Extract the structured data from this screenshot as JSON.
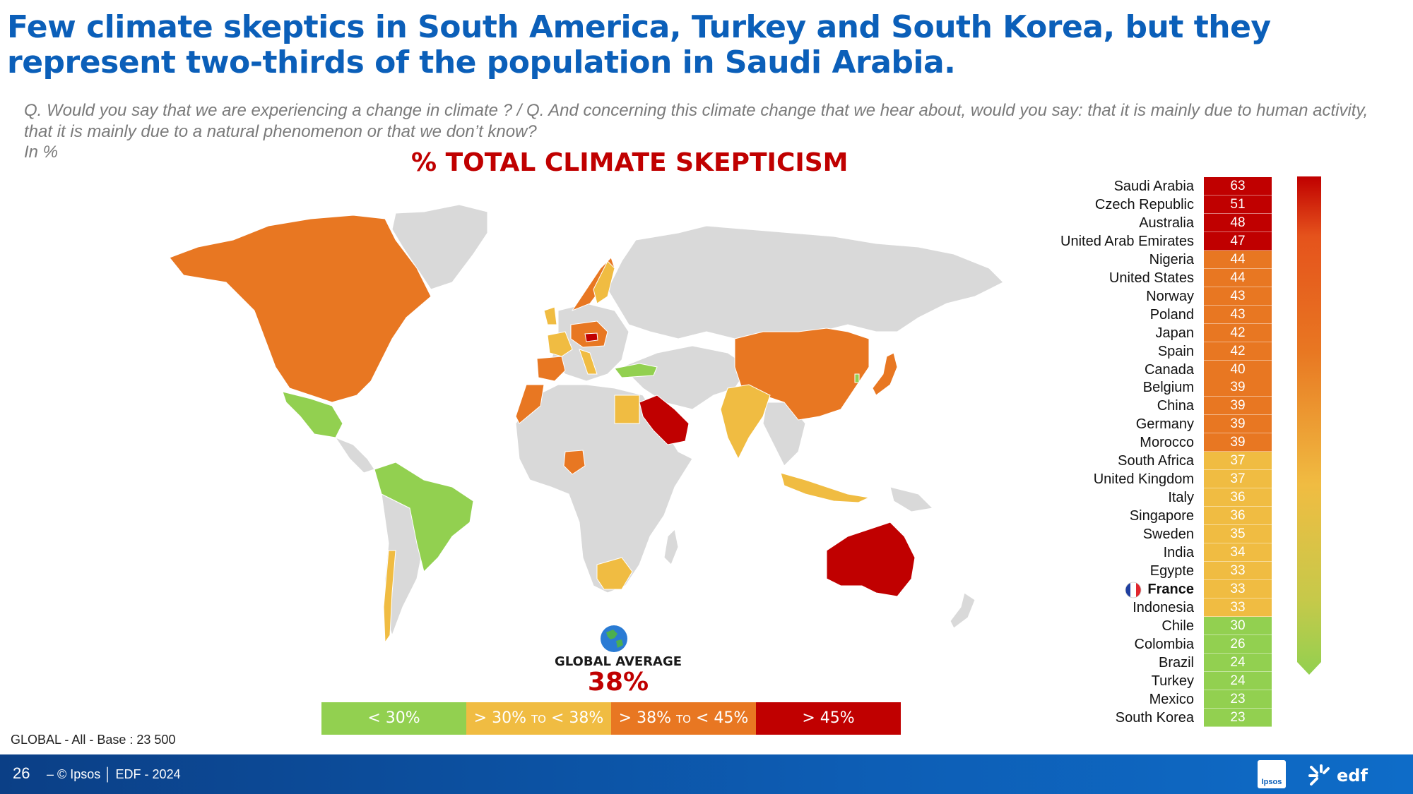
{
  "header": {
    "title": "Few climate skeptics in South America, Turkey and South Korea, but they represent two-thirds of the population in Saudi Arabia.",
    "question": "Q. Would you say that we are experiencing a change in climate ? / Q. And concerning this climate change that we hear about, would you say: that it is mainly due to human activity, that it is mainly due to a natural phenomenon or that we don’t know?",
    "unit": "In %"
  },
  "map": {
    "title": "% TOTAL CLIMATE SKEPTICISM",
    "global_average_label": "GLOBAL AVERAGE",
    "global_average_value": "38%"
  },
  "legend": [
    {
      "label": "< 30%",
      "color": "#92d050"
    },
    {
      "label": "> 30%",
      "small": "TO",
      "label2": "< 38%",
      "color": "#f0bc42"
    },
    {
      "label": "> 38%",
      "small": "TO",
      "label2": "< 45%",
      "color": "#e87722"
    },
    {
      "label": "> 45%",
      "color": "#c00000"
    }
  ],
  "colors": {
    "green": "#92d050",
    "yellow": "#f0bc42",
    "orange": "#e87722",
    "red": "#c00000",
    "land": "#d9d9d9"
  },
  "base_note": "GLOBAL - All - Base : 23 500",
  "footer": {
    "page_number": "26",
    "text": "– © Ipsos │ EDF - 2024",
    "ipsos_logo": "Ipsos",
    "edf_logo": "EDF"
  },
  "chart_data": {
    "type": "bar",
    "title": "% TOTAL CLIMATE SKEPTICISM",
    "unit": "%",
    "highlight": "France",
    "categories": [
      "Saudi Arabia",
      "Czech Republic",
      "Australia",
      "United Arab Emirates",
      "Nigeria",
      "United States",
      "Norway",
      "Poland",
      "Japan",
      "Spain",
      "Canada",
      "Belgium",
      "China",
      "Germany",
      "Morocco",
      "South Africa",
      "United Kingdom",
      "Italy",
      "Singapore",
      "Sweden",
      "India",
      "Egypte",
      "France",
      "Indonesia",
      "Chile",
      "Colombia",
      "Brazil",
      "Turkey",
      "Mexico",
      "South Korea"
    ],
    "values": [
      63,
      51,
      48,
      47,
      44,
      44,
      43,
      43,
      42,
      42,
      40,
      39,
      39,
      39,
      39,
      37,
      37,
      36,
      36,
      35,
      34,
      33,
      33,
      33,
      30,
      26,
      24,
      24,
      23,
      23
    ],
    "global_average": 38
  }
}
